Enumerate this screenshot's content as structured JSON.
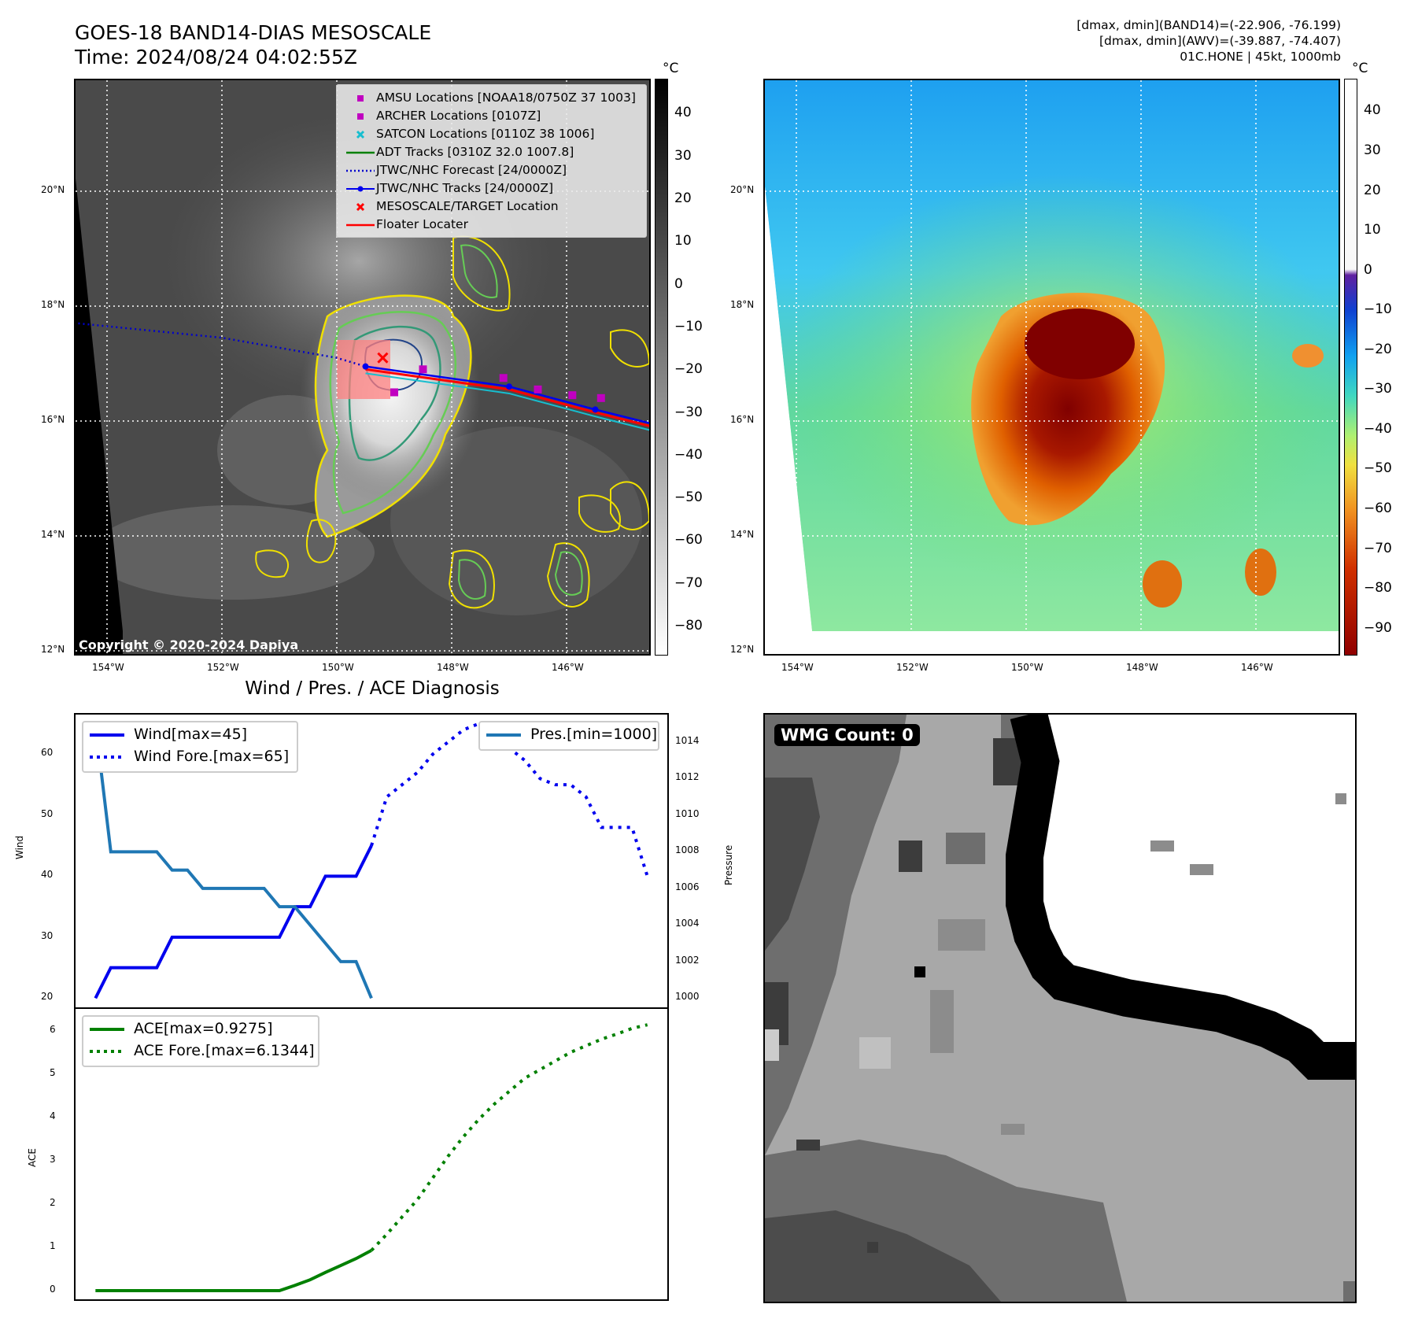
{
  "header": {
    "title_line1": "GOES-18 BAND14-DIAS MESOSCALE",
    "title_line2": "Time: 2024/08/24 04:02:55Z",
    "info_line1": "[dmax, dmin](BAND14)=(-22.906, -76.199)",
    "info_line2": "[dmax, dmin](AWV)=(-39.887, -74.407)",
    "info_line3": "01C.HONE | 45kt, 1000mb"
  },
  "colors": {
    "wind": "#0000ee",
    "pressure": "#1f77b4",
    "ace": "#008000",
    "amsu": "#c000c0",
    "archer": "#c000c0",
    "satcon": "#17becf",
    "adt": "#008000",
    "jtwc_forecast": "#0000cc",
    "jtwc_track": "#0000ee",
    "target": "#ff0000",
    "floater": "#ff0000"
  },
  "map": {
    "lon_ticks": [
      "154°W",
      "152°W",
      "150°W",
      "148°W",
      "146°W"
    ],
    "lat_ticks": [
      "20°N",
      "18°N",
      "16°N",
      "14°N",
      "12°N"
    ],
    "colorbar_unit": "°C",
    "ir_colorbar_ticks": [
      "40",
      "30",
      "20",
      "10",
      "0",
      "−10",
      "−20",
      "−30",
      "−40",
      "−50",
      "−60",
      "−70",
      "−80"
    ],
    "awv_colorbar_ticks": [
      "40",
      "30",
      "20",
      "10",
      "0",
      "−10",
      "−20",
      "−30",
      "−40",
      "−50",
      "−60",
      "−70",
      "−80",
      "−90"
    ],
    "copyright": "Copyright © 2020-2024 Dapiya",
    "legend": [
      {
        "label": "AMSU Locations [NOAA18/0750Z 37 1003]",
        "symbol": "square",
        "color_key": "amsu"
      },
      {
        "label": "ARCHER Locations [0107Z]",
        "symbol": "square",
        "color_key": "archer"
      },
      {
        "label": "SATCON Locations [0110Z 38 1006]",
        "symbol": "x",
        "color_key": "satcon"
      },
      {
        "label": "ADT Tracks [0310Z 32.0 1007.8]",
        "symbol": "line",
        "color_key": "adt"
      },
      {
        "label": "JTWC/NHC Forecast [24/0000Z]",
        "symbol": "dotted",
        "color_key": "jtwc_forecast"
      },
      {
        "label": "JTWC/NHC Tracks [24/0000Z]",
        "symbol": "line-dot",
        "color_key": "jtwc_track"
      },
      {
        "label": "MESOSCALE/TARGET Location",
        "symbol": "x",
        "color_key": "target"
      },
      {
        "label": "Floater Locater",
        "symbol": "line",
        "color_key": "floater"
      }
    ],
    "fixes": {
      "amsu_archer": [
        [
          -148.5,
          16.9
        ],
        [
          -147.1,
          16.75
        ],
        [
          -146.5,
          16.55
        ],
        [
          -145.9,
          16.45
        ],
        [
          -145.4,
          16.4
        ],
        [
          -149,
          16.5
        ]
      ],
      "target": [
        -149.2,
        17.1
      ],
      "jtwc_forecast_track": [
        [
          -154.5,
          17.7
        ],
        [
          -152,
          17.45
        ],
        [
          -150,
          17.1
        ],
        [
          -149.5,
          16.95
        ]
      ],
      "jtwc_track": [
        [
          -149.5,
          16.95
        ],
        [
          -147,
          16.6
        ],
        [
          -145.5,
          16.2
        ],
        [
          -144.5,
          15.95
        ]
      ]
    }
  },
  "diagnosis": {
    "title": "Wind / Pres. / ACE Diagnosis",
    "wind_axis_label": "Wind",
    "pressure_axis_label": "Pressure",
    "ace_axis_label": "ACE",
    "wind_ticks": [
      "60",
      "50",
      "40",
      "30",
      "20"
    ],
    "pressure_ticks": [
      "1014",
      "1012",
      "1010",
      "1008",
      "1006",
      "1004",
      "1002",
      "1000"
    ],
    "ace_ticks": [
      "6",
      "5",
      "4",
      "3",
      "2",
      "1",
      "0"
    ],
    "legend_wind": "Wind[max=45]",
    "legend_wind_fore": "Wind Fore.[max=65]",
    "legend_pres": "Pres.[min=1000]",
    "legend_ace": "ACE[max=0.9275]",
    "legend_ace_fore": "ACE Fore.[max=6.1344]"
  },
  "chart_data": [
    {
      "type": "line",
      "title": "Wind / Pres. / ACE Diagnosis",
      "ylabel": "Wind",
      "y2label": "Pressure",
      "ylim": [
        18.5,
        66.5
      ],
      "y2lim": [
        999.5,
        1015.5
      ],
      "x": [
        0,
        1,
        2,
        3,
        4,
        5,
        6,
        7,
        8,
        9,
        10,
        11,
        12,
        13,
        14,
        15,
        16,
        17,
        18,
        19,
        20,
        21,
        22,
        23,
        24,
        25,
        26,
        27,
        28,
        29,
        30,
        31,
        32,
        33,
        34,
        35,
        36
      ],
      "series": [
        {
          "name": "Wind[max=45]",
          "axis": "left",
          "style": "solid",
          "x": [
            0,
            1,
            2,
            3,
            4,
            5,
            6,
            7,
            8,
            9,
            10,
            11,
            12,
            13,
            14,
            15,
            16,
            17,
            18
          ],
          "values": [
            20,
            25,
            25,
            25,
            25,
            30,
            30,
            30,
            30,
            30,
            30,
            30,
            30,
            35,
            35,
            40,
            40,
            40,
            45
          ]
        },
        {
          "name": "Wind Fore.[max=65]",
          "axis": "left",
          "style": "dotted",
          "x": [
            18,
            19,
            20,
            21,
            22,
            23,
            24,
            25,
            26,
            27,
            28,
            29,
            30,
            31,
            32,
            33,
            34,
            35,
            36
          ],
          "values": [
            45,
            53,
            55,
            57,
            60,
            62,
            64,
            65,
            63,
            61,
            59,
            56,
            55,
            55,
            53,
            48,
            48,
            48,
            40
          ]
        },
        {
          "name": "Pres.[min=1000]",
          "axis": "right",
          "style": "solid",
          "x": [
            0,
            1,
            2,
            3,
            4,
            5,
            6,
            7,
            8,
            9,
            10,
            11,
            12,
            13,
            14,
            15,
            16,
            17,
            18
          ],
          "values": [
            1015,
            1008,
            1008,
            1008,
            1008,
            1007,
            1007,
            1006,
            1006,
            1006,
            1006,
            1006,
            1005,
            1005,
            1004,
            1003,
            1002,
            1002,
            1000
          ]
        }
      ]
    },
    {
      "type": "line",
      "ylabel": "ACE",
      "ylim": [
        -0.2,
        6.5
      ],
      "series": [
        {
          "name": "ACE[max=0.9275]",
          "style": "solid",
          "x": [
            0,
            1,
            2,
            3,
            4,
            5,
            6,
            7,
            8,
            9,
            10,
            11,
            12,
            13,
            14,
            15,
            16,
            17,
            18
          ],
          "values": [
            0,
            0,
            0,
            0,
            0,
            0,
            0,
            0,
            0,
            0,
            0,
            0,
            0,
            0.12,
            0.25,
            0.42,
            0.58,
            0.74,
            0.9275
          ]
        },
        {
          "name": "ACE Fore.[max=6.1344]",
          "style": "dotted",
          "x": [
            18,
            19,
            20,
            21,
            22,
            23,
            24,
            25,
            26,
            27,
            28,
            29,
            30,
            31,
            32,
            33,
            34,
            35,
            36
          ],
          "values": [
            0.9275,
            1.3,
            1.7,
            2.1,
            2.6,
            3.1,
            3.55,
            3.95,
            4.3,
            4.6,
            4.9,
            5.1,
            5.3,
            5.5,
            5.65,
            5.8,
            5.92,
            6.05,
            6.1344
          ]
        }
      ]
    }
  ],
  "wmg": {
    "badge": "WMG Count: 0"
  }
}
